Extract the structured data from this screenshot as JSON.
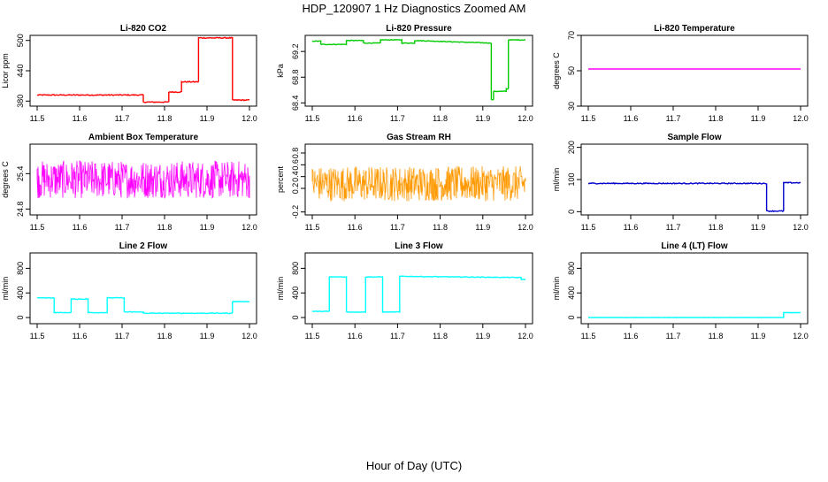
{
  "figure": {
    "title": "HDP_120907  1 Hz Diagnostics Zoomed AM",
    "xlabel": "Hour of Day (UTC)"
  },
  "chart_data": [
    {
      "type": "line",
      "title": "Li-820 CO2",
      "ylabel": "Licor ppm",
      "color": "#ff0000",
      "xlim": [
        11.5,
        12.0
      ],
      "ylim": [
        370,
        510
      ],
      "xticks": [
        11.5,
        11.6,
        11.7,
        11.8,
        11.9,
        12.0
      ],
      "yticks": [
        380,
        440,
        500
      ],
      "x": [
        11.5,
        11.75,
        11.75,
        11.81,
        11.81,
        11.84,
        11.84,
        11.88,
        11.88,
        11.96,
        11.96,
        12.0
      ],
      "y": [
        392,
        392,
        378,
        378,
        398,
        398,
        418,
        418,
        505,
        505,
        382,
        382
      ],
      "noise": 1
    },
    {
      "type": "line",
      "title": "Li-820 Pressure",
      "ylabel": "kPa",
      "color": "#00cc00",
      "xlim": [
        11.5,
        12.0
      ],
      "ylim": [
        68.35,
        69.45
      ],
      "xticks": [
        11.5,
        11.6,
        11.7,
        11.8,
        11.9,
        12.0
      ],
      "yticks": [
        68.4,
        68.8,
        69.2
      ],
      "x": [
        11.5,
        11.52,
        11.52,
        11.58,
        11.58,
        11.62,
        11.62,
        11.66,
        11.66,
        11.71,
        11.71,
        11.74,
        11.74,
        11.92,
        11.92,
        11.925,
        11.925,
        11.955,
        11.955,
        11.96,
        11.96,
        12.0
      ],
      "y": [
        69.36,
        69.36,
        69.31,
        69.31,
        69.37,
        69.37,
        69.33,
        69.33,
        69.38,
        69.38,
        69.33,
        69.33,
        69.37,
        69.33,
        68.45,
        68.45,
        68.58,
        68.58,
        68.62,
        68.62,
        69.38,
        69.38
      ],
      "noise": 0.005
    },
    {
      "type": "line",
      "title": "Li-820 Temperature",
      "ylabel": "degrees C",
      "color": "#ff00ff",
      "xlim": [
        11.5,
        12.0
      ],
      "ylim": [
        30,
        70
      ],
      "xticks": [
        11.5,
        11.6,
        11.7,
        11.8,
        11.9,
        12.0
      ],
      "yticks": [
        30,
        50,
        70
      ],
      "x": [
        11.5,
        12.0
      ],
      "y": [
        51,
        51
      ],
      "noise": 0
    },
    {
      "type": "line",
      "title": "Ambient Box Temperature",
      "ylabel": "degrees C",
      "color": "#ff00ff",
      "xlim": [
        11.5,
        12.0
      ],
      "ylim": [
        24.7,
        25.9
      ],
      "xticks": [
        11.5,
        11.6,
        11.7,
        11.8,
        11.9,
        12.0
      ],
      "yticks": [
        24.8,
        25.4
      ],
      "x": [
        11.5,
        12.0
      ],
      "y": [
        25.3,
        25.3
      ],
      "noise": 0.32
    },
    {
      "type": "line",
      "title": "Gas Stream RH",
      "ylabel": "percent",
      "color": "#ff9900",
      "xlim": [
        11.5,
        12.0
      ],
      "ylim": [
        -0.25,
        0.95
      ],
      "xticks": [
        11.5,
        11.6,
        11.7,
        11.8,
        11.9,
        12.0
      ],
      "yticks": [
        -0.2,
        0.2,
        0.4,
        0.6,
        0.8
      ],
      "x": [
        11.5,
        12.0
      ],
      "y": [
        0.28,
        0.28
      ],
      "noise": 0.3
    },
    {
      "type": "line",
      "title": "Sample Flow",
      "ylabel": "ml/min",
      "color": "#0000cc",
      "xlim": [
        11.5,
        12.0
      ],
      "ylim": [
        -10,
        210
      ],
      "xticks": [
        11.5,
        11.6,
        11.7,
        11.8,
        11.9,
        12.0
      ],
      "yticks": [
        0,
        100,
        200
      ],
      "x": [
        11.5,
        11.92,
        11.92,
        11.96,
        11.96,
        12.0
      ],
      "y": [
        88,
        88,
        2,
        2,
        90,
        90
      ],
      "noise": 1.5
    },
    {
      "type": "line",
      "title": "Line 2 Flow",
      "ylabel": "ml/min",
      "color": "#00ffff",
      "xlim": [
        11.5,
        12.0
      ],
      "ylim": [
        -100,
        1050
      ],
      "xticks": [
        11.5,
        11.6,
        11.7,
        11.8,
        11.9,
        12.0
      ],
      "yticks": [
        0,
        400,
        800
      ],
      "x": [
        11.5,
        11.54,
        11.54,
        11.58,
        11.58,
        11.62,
        11.62,
        11.665,
        11.665,
        11.705,
        11.705,
        11.75,
        11.75,
        11.96,
        11.96,
        12.0
      ],
      "y": [
        320,
        320,
        80,
        80,
        300,
        300,
        80,
        80,
        320,
        320,
        90,
        90,
        70,
        70,
        260,
        260
      ],
      "noise": 5
    },
    {
      "type": "line",
      "title": "Line 3 Flow",
      "ylabel": "ml/min",
      "color": "#00ffff",
      "xlim": [
        11.5,
        12.0
      ],
      "ylim": [
        -100,
        1050
      ],
      "xticks": [
        11.5,
        11.6,
        11.7,
        11.8,
        11.9,
        12.0
      ],
      "yticks": [
        0,
        400,
        800
      ],
      "x": [
        11.5,
        11.54,
        11.54,
        11.58,
        11.58,
        11.625,
        11.625,
        11.665,
        11.665,
        11.705,
        11.705,
        11.99,
        11.99,
        12.0
      ],
      "y": [
        100,
        100,
        660,
        660,
        90,
        90,
        660,
        660,
        90,
        90,
        670,
        650,
        620,
        620
      ],
      "noise": 5
    },
    {
      "type": "line",
      "title": "Line 4 (LT) Flow",
      "ylabel": "ml/min",
      "color": "#00ffff",
      "xlim": [
        11.5,
        12.0
      ],
      "ylim": [
        -100,
        1050
      ],
      "xticks": [
        11.5,
        11.6,
        11.7,
        11.8,
        11.9,
        12.0
      ],
      "yticks": [
        0,
        400,
        800
      ],
      "x": [
        11.5,
        11.96,
        11.96,
        12.0
      ],
      "y": [
        0,
        0,
        80,
        80
      ],
      "noise": 2
    }
  ]
}
